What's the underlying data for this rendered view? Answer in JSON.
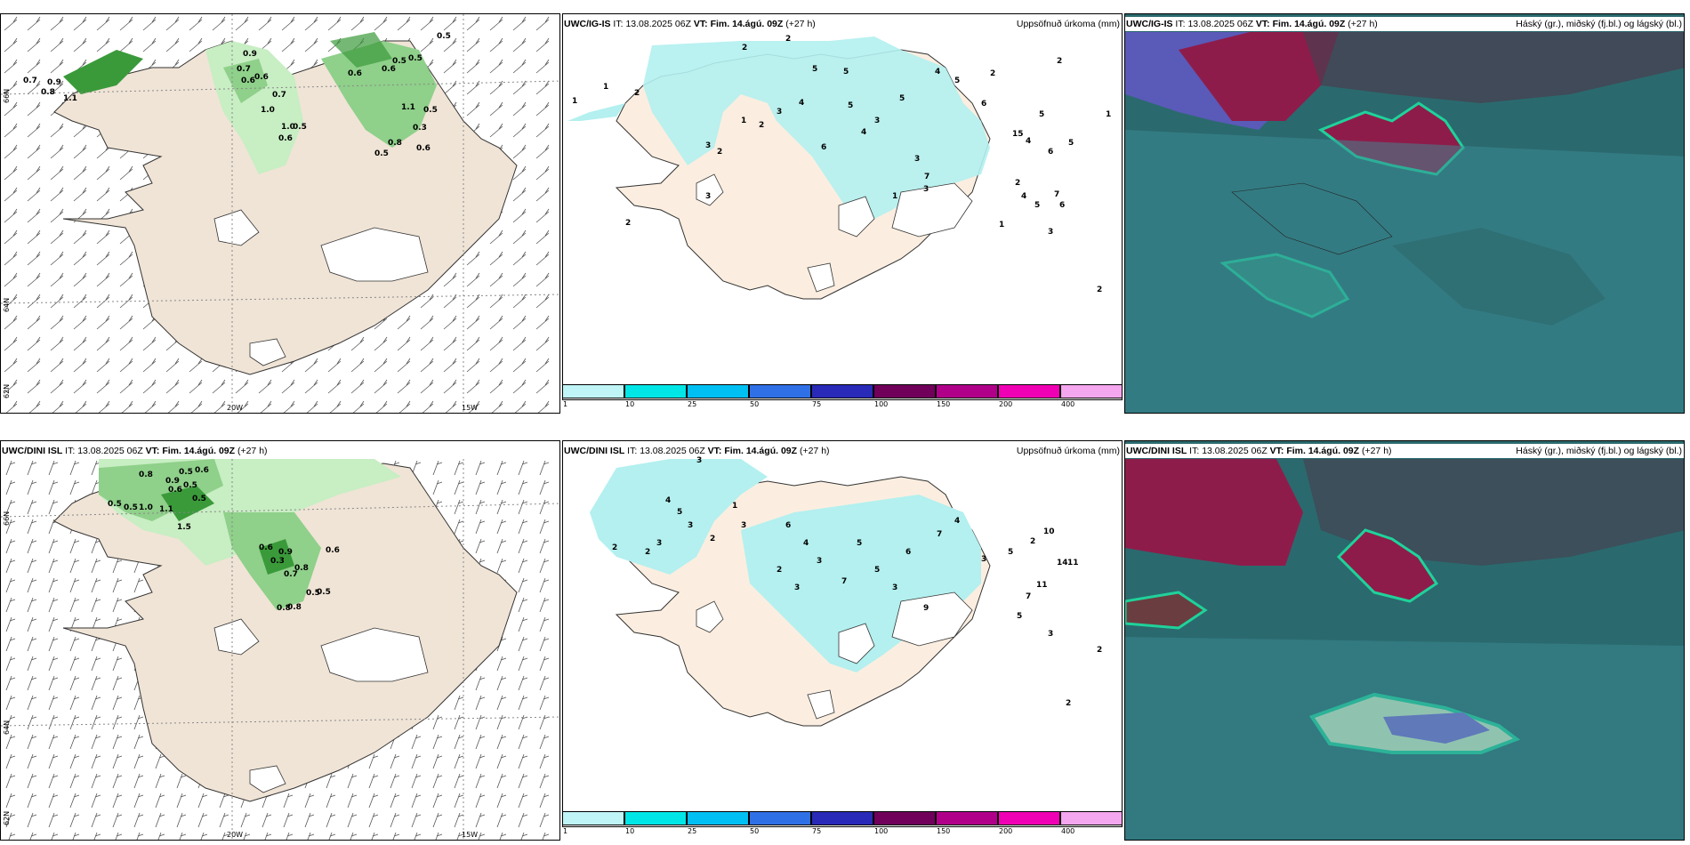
{
  "rows": [
    {
      "model": "UWC/IG-IS",
      "it_label": "IT:",
      "it_value": "13.08.2025 06Z",
      "vt_label": "VT: Fim. 14.ágú. 09Z",
      "lead": "(+27 h)",
      "left_header_partial": "h)"
    },
    {
      "model": "UWC/DINI ISL",
      "it_label": "IT:",
      "it_value": "13.08.2025 06Z",
      "vt_label": "VT: Fim. 14.ágú. 09Z",
      "lead": "(+27 h)"
    }
  ],
  "precip_title": "Uppsöfnuð úrkoma (mm)",
  "cloud_title": "Háský (gr.), miðský (fj.bl.) og lágský (bl.)",
  "coords": {
    "lon_left": "20W",
    "lon_right": "15W",
    "lat_top": "66N",
    "lat_mid": "64N",
    "lat_low": "62N"
  },
  "legend": {
    "ticks": [
      "1",
      "10",
      "25",
      "50",
      "75",
      "100",
      "150",
      "200",
      "400"
    ],
    "colors": [
      "#bff5f7",
      "#00e6e6",
      "#00bff2",
      "#3070e6",
      "#2a2ab8",
      "#70005a",
      "#b0008a",
      "#f000b4",
      "#f4a6ee"
    ]
  },
  "colors": {
    "land": "#f0e4d6",
    "precip_land": "#fbeee0",
    "rain_light": "#b3f0ef",
    "green_light": "#c8eec3",
    "green_mid": "#8fd08a",
    "green_dark": "#3a9a3a",
    "cloud_bg": "#2a6a6e",
    "cloud_high": "#8e1c4a",
    "cloud_low": "#1fd29a"
  },
  "wind_values_top": [
    "0.7",
    "0.9",
    "0.8",
    "1.1",
    "0.9",
    "0.7",
    "0.6",
    "0.6",
    "1.0",
    "0.7",
    "1.0",
    "0.6",
    "0.5",
    "0.6",
    "0.6",
    "0.5",
    "0.5",
    "0.5",
    "0.5",
    "1.1",
    "0.3",
    "0.8",
    "0.5",
    "0.6"
  ],
  "wind_values_bottom": [
    "0.8",
    "0.5",
    "0.5",
    "0.9",
    "0.6",
    "0.5",
    "1.0",
    "0.6",
    "0.5",
    "0.5",
    "1.1",
    "1.5",
    "0.6",
    "0.3",
    "0.9",
    "0.7",
    "0.8",
    "0.6",
    "0.8",
    "0.8",
    "0.5",
    "0.5"
  ],
  "precip_values_top": [
    "2",
    "2",
    "1",
    "1",
    "2",
    "5",
    "5",
    "3",
    "1",
    "2",
    "3",
    "2",
    "4",
    "6",
    "5",
    "4",
    "3",
    "5",
    "3",
    "7",
    "4",
    "5",
    "6",
    "2",
    "4",
    "3",
    "1",
    "2",
    "1",
    "5",
    "2",
    "3",
    "6",
    "5",
    "3",
    "2",
    "15",
    "6",
    "5",
    "4",
    "7",
    "2",
    "1"
  ],
  "precip_values_bottom": [
    "3",
    "2",
    "2",
    "3",
    "4",
    "5",
    "3",
    "2",
    "3",
    "6",
    "4",
    "3",
    "7",
    "5",
    "2",
    "3",
    "5",
    "3",
    "6",
    "7",
    "4",
    "9",
    "3",
    "5",
    "2",
    "10",
    "11",
    "14",
    "11",
    "7",
    "5",
    "3",
    "2",
    "1",
    "2"
  ]
}
